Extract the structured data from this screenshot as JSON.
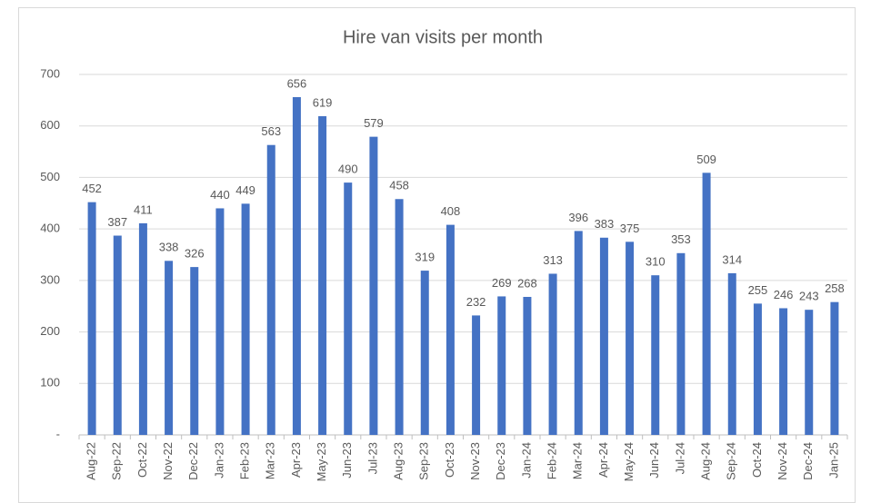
{
  "chart_data": {
    "type": "bar",
    "title": "Hire van visits per month",
    "categories": [
      "Aug-22",
      "Sep-22",
      "Oct-22",
      "Nov-22",
      "Dec-22",
      "Jan-23",
      "Feb-23",
      "Mar-23",
      "Apr-23",
      "May-23",
      "Jun-23",
      "Jul-23",
      "Aug-23",
      "Sep-23",
      "Oct-23",
      "Nov-23",
      "Dec-23",
      "Jan-24",
      "Feb-24",
      "Mar-24",
      "Apr-24",
      "May-24",
      "Jun-24",
      "Jul-24",
      "Aug-24",
      "Sep-24",
      "Oct-24",
      "Nov-24",
      "Dec-24",
      "Jan-25"
    ],
    "values": [
      452,
      387,
      411,
      338,
      326,
      440,
      449,
      563,
      656,
      619,
      490,
      579,
      458,
      319,
      408,
      232,
      269,
      268,
      313,
      396,
      383,
      375,
      310,
      353,
      509,
      314,
      255,
      246,
      243,
      258
    ],
    "color": "#4472c4",
    "ylim": [
      0,
      700
    ],
    "yticks": [
      {
        "value": 0,
        "label": "-"
      },
      100,
      200,
      300,
      400,
      500,
      600,
      700
    ],
    "grid": true
  }
}
